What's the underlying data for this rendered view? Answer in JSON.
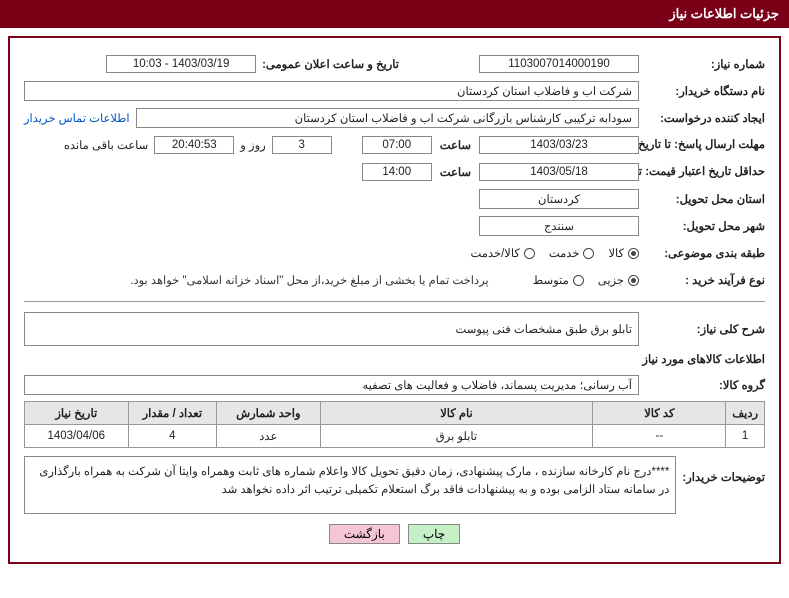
{
  "header": {
    "title": "جزئیات اطلاعات نیاز"
  },
  "fields": {
    "need_no": {
      "label": "شماره نیاز:",
      "value": "1103007014000190"
    },
    "announce": {
      "label": "تاریخ و ساعت اعلان عمومی:",
      "value": "1403/03/19 - 10:03"
    },
    "buyer_org": {
      "label": "نام دستگاه خریدار:",
      "value": "شرکت اب و فاضلاب استان کردستان"
    },
    "requester": {
      "label": "ایجاد کننده درخواست:",
      "value": "سودابه ترکیبی کارشناس بازرگانی شرکت اب و فاضلاب استان کردستان",
      "contact_link": "اطلاعات تماس خریدار"
    },
    "deadline": {
      "label1": "مهلت ارسال پاسخ:",
      "label2": "تا تاریخ:",
      "date": "1403/03/23",
      "time_label": "ساعت",
      "time": "07:00",
      "days": "3",
      "days_mid": "روز و",
      "remaining": "20:40:53",
      "remain_suffix": "ساعت باقی مانده"
    },
    "validity": {
      "label1": "حداقل تاریخ اعتبار قیمت:",
      "label2": "تا تاریخ:",
      "date": "1403/05/18",
      "time_label": "ساعت",
      "time": "14:00"
    },
    "deliver_province": {
      "label": "استان محل تحویل:",
      "value": "کردستان"
    },
    "deliver_city": {
      "label": "شهر محل تحویل:",
      "value": "سنندج"
    },
    "subject_class": {
      "label": "طبقه بندی موضوعی:",
      "options": [
        "کالا",
        "خدمت",
        "کالا/خدمت"
      ],
      "selected": 0
    },
    "purchase_type": {
      "label": "نوع فرآیند خرید :",
      "options": [
        "جزیی",
        "متوسط"
      ],
      "selected": 0,
      "suffix_note": "پرداخت تمام یا بخشی از مبلغ خرید،از محل \"اسناد خزانه اسلامی\" خواهد بود."
    },
    "general_desc": {
      "label": "شرح کلی نیاز:",
      "value": "تابلو برق طبق مشخصات فنی پیوست"
    },
    "goods_section_title": "اطلاعات کالاهای مورد نیاز",
    "goods_group": {
      "label": "گروه کالا:",
      "value": "آب رسانی؛ مدیریت پسماند، فاضلاب و فعالیت های تصفیه"
    }
  },
  "table": {
    "columns": [
      "ردیف",
      "کد کالا",
      "نام کالا",
      "واحد شمارش",
      "تعداد / مقدار",
      "تاریخ نیاز"
    ],
    "col_widths": [
      "5%",
      "18%",
      "37%",
      "14%",
      "12%",
      "14%"
    ],
    "rows": [
      [
        "1",
        "--",
        "تابلو برق",
        "عدد",
        "4",
        "1403/04/06"
      ]
    ]
  },
  "buyer_note": {
    "label": "توضیحات خریدار:",
    "value": "****درج نام کارخانه سازنده ، مارک پیشنهادی، زمان دقیق تحویل کالا واعلام شماره های ثابت وهمراه وایتا آن شرکت به همراه بارگذاری در سامانه ستاد الزامی بوده و به پیشنهادات فاقد برگ استعلام تکمیلی ترتیب اثر داده نخواهد شد"
  },
  "buttons": {
    "print": "چاپ",
    "back": "بازگشت"
  },
  "style": {
    "header_bg": "#7a0018",
    "border_color": "#7a0018",
    "th_bg": "#e6e6e6",
    "btn_green": "#c6f0c6",
    "btn_pink": "#f4c6d4"
  }
}
